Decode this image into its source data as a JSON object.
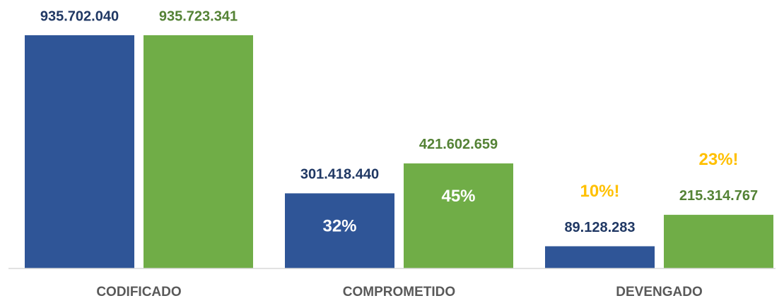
{
  "chart_data": {
    "type": "bar",
    "categories": [
      "CODIFICADO",
      "COMPROMETIDO",
      "DEVENGADO"
    ],
    "series": [
      {
        "color": "#2f5597",
        "label_color": "#203864",
        "values": [
          935702040,
          301418440,
          89128283
        ],
        "value_labels": [
          "935.702.040",
          "301.418.440",
          "89.128.283"
        ],
        "percent_labels": [
          null,
          "32%",
          "10%!"
        ]
      },
      {
        "color": "#70ad47",
        "label_color": "#548235",
        "values": [
          935723341,
          421602659,
          215314767
        ],
        "value_labels": [
          "935.723.341",
          "421.602.659",
          "215.314.767"
        ],
        "percent_labels": [
          null,
          "45%",
          "23%!"
        ]
      }
    ],
    "inside_label_color": "#ffffff",
    "outside_label_color": "#ffc000"
  }
}
